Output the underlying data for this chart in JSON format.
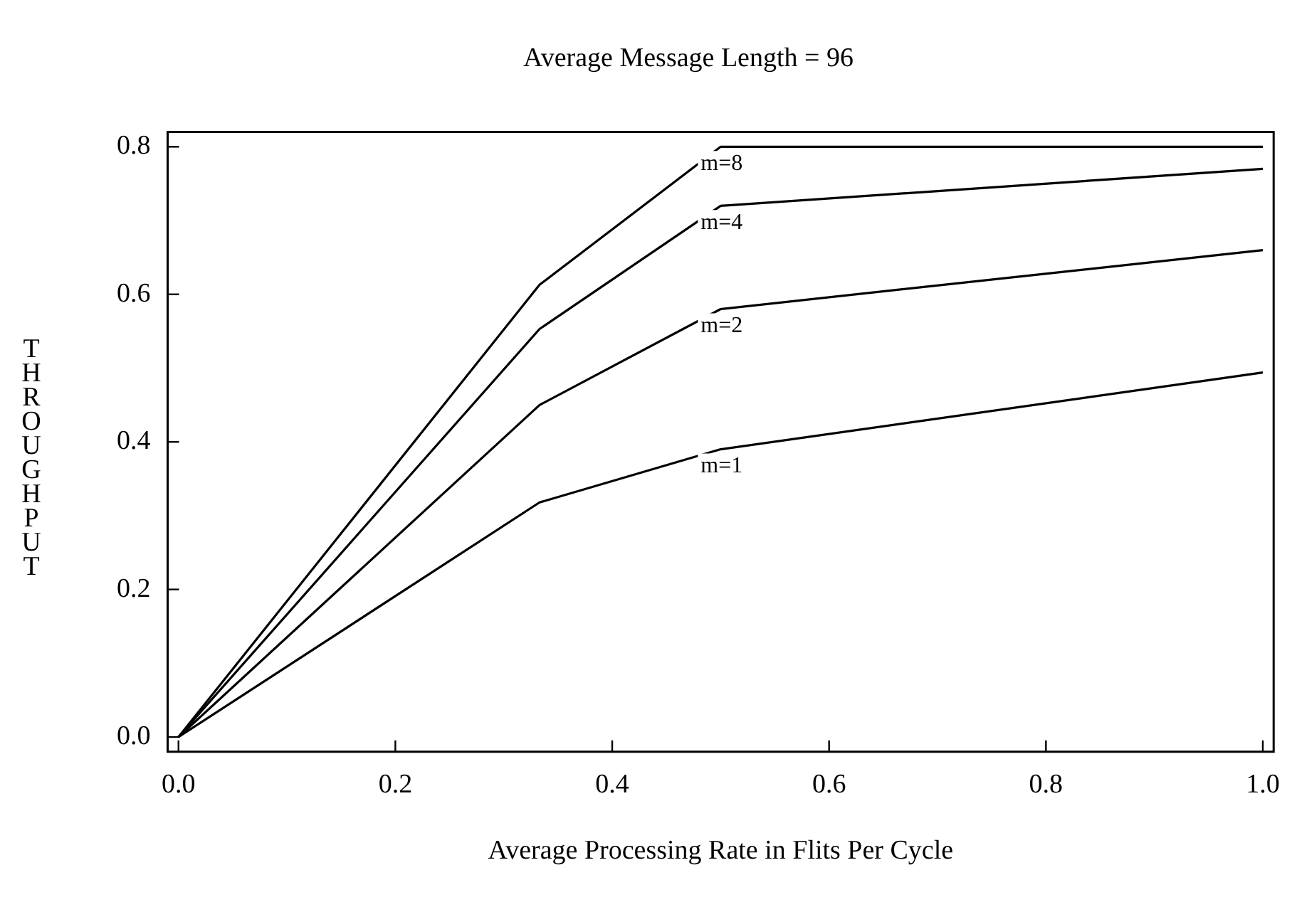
{
  "chart_data": {
    "type": "line",
    "title": "Average Message Length = 96",
    "xlabel": "Average Processing Rate in Flits Per Cycle",
    "ylabel": "THROUGHPUT",
    "x": [
      0,
      0.333,
      0.5,
      1
    ],
    "series": [
      {
        "name": "m=8",
        "color": "#000000",
        "values": [
          0,
          0.613,
          0.8,
          0.8
        ]
      },
      {
        "name": "m=4",
        "color": "#000000",
        "values": [
          0,
          0.553,
          0.72,
          0.77
        ]
      },
      {
        "name": "m=2",
        "color": "#000000",
        "values": [
          0,
          0.45,
          0.58,
          0.66
        ]
      },
      {
        "name": "m=1",
        "color": "#000000",
        "values": [
          0,
          0.318,
          0.39,
          0.494
        ]
      }
    ],
    "xlim": [
      -0.01,
      1.01
    ],
    "ylim": [
      -0.02,
      0.82
    ],
    "xticks": [
      {
        "value": 0,
        "label": "0.0"
      },
      0.2,
      0.4,
      0.6,
      0.8,
      {
        "value": 1,
        "label": "1.0"
      }
    ],
    "yticks": [
      {
        "value": 0,
        "label": "0.0"
      },
      0.2,
      0.4,
      0.6,
      0.8
    ],
    "grid": false,
    "legend": false,
    "marker": "none",
    "line_style": "solid"
  }
}
